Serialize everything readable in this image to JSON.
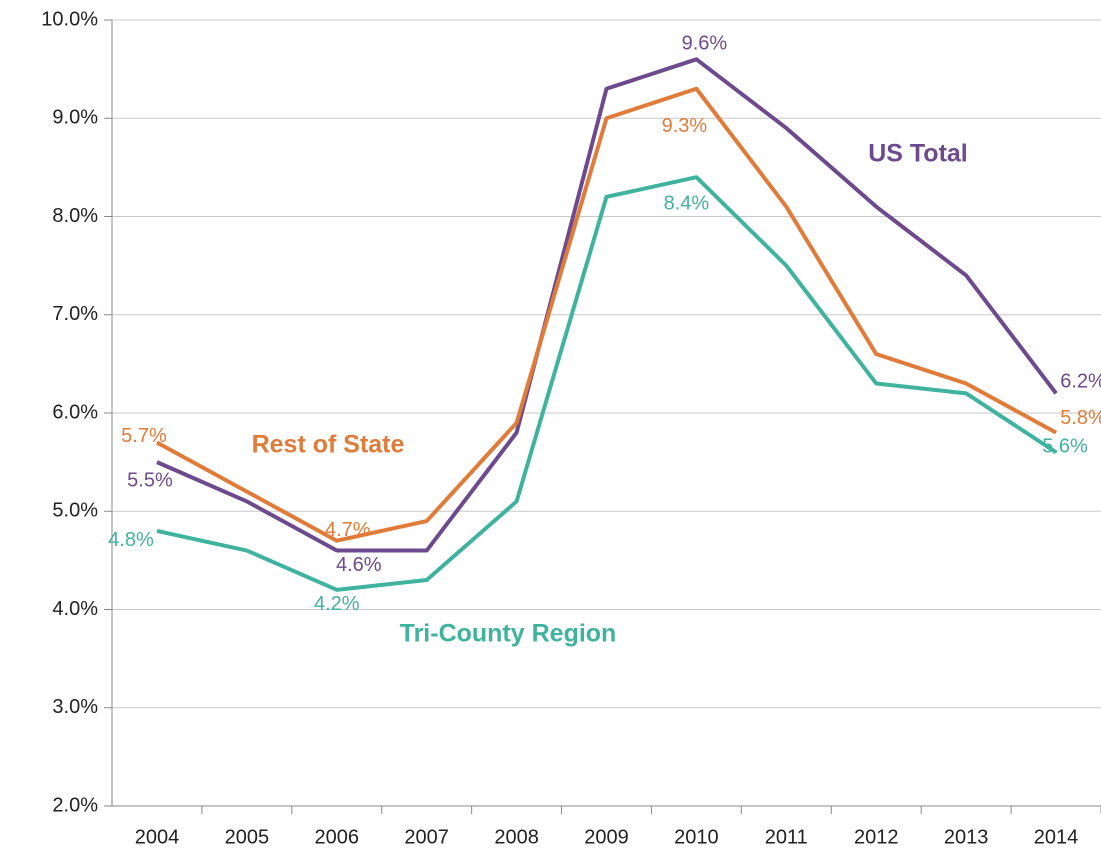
{
  "chart_data": {
    "type": "line",
    "categories": [
      "2004",
      "2005",
      "2006",
      "2007",
      "2008",
      "2009",
      "2010",
      "2011",
      "2012",
      "2013",
      "2014"
    ],
    "series": [
      {
        "name": "US Total",
        "color": "#6d4a8e",
        "values": [
          5.5,
          5.1,
          4.6,
          4.6,
          5.8,
          9.3,
          9.6,
          8.9,
          8.1,
          7.4,
          6.2
        ],
        "value_labels": [
          "5.5%",
          null,
          "4.6%",
          null,
          null,
          null,
          "9.6%",
          null,
          null,
          null,
          "6.2%"
        ]
      },
      {
        "name": "Rest of State",
        "color": "#e07b39",
        "values": [
          5.7,
          5.2,
          4.7,
          4.9,
          5.9,
          9.0,
          9.3,
          8.1,
          6.6,
          6.3,
          5.8
        ],
        "value_labels": [
          "5.7%",
          null,
          "4.7%",
          null,
          null,
          null,
          "9.3%",
          null,
          null,
          null,
          "5.8%"
        ]
      },
      {
        "name": "Tri-County Region",
        "color": "#3fb39e",
        "values": [
          4.8,
          4.6,
          4.2,
          4.3,
          5.1,
          8.2,
          8.4,
          7.5,
          6.3,
          6.2,
          5.6
        ],
        "value_labels": [
          "4.8%",
          null,
          "4.2%",
          null,
          null,
          null,
          "8.4%",
          null,
          null,
          null,
          "5.6%"
        ]
      }
    ],
    "ylim": [
      2,
      10
    ],
    "yticks": [
      {
        "value": 2,
        "label": "2.0%"
      },
      {
        "value": 3,
        "label": "3.0%"
      },
      {
        "value": 4,
        "label": "4.0%"
      },
      {
        "value": 5,
        "label": "5.0%"
      },
      {
        "value": 6,
        "label": "6.0%"
      },
      {
        "value": 7,
        "label": "7.0%"
      },
      {
        "value": 8,
        "label": "8.0%"
      },
      {
        "value": 9,
        "label": "9.0%"
      },
      {
        "value": 10,
        "label": "10.0%"
      }
    ],
    "grid": true
  }
}
